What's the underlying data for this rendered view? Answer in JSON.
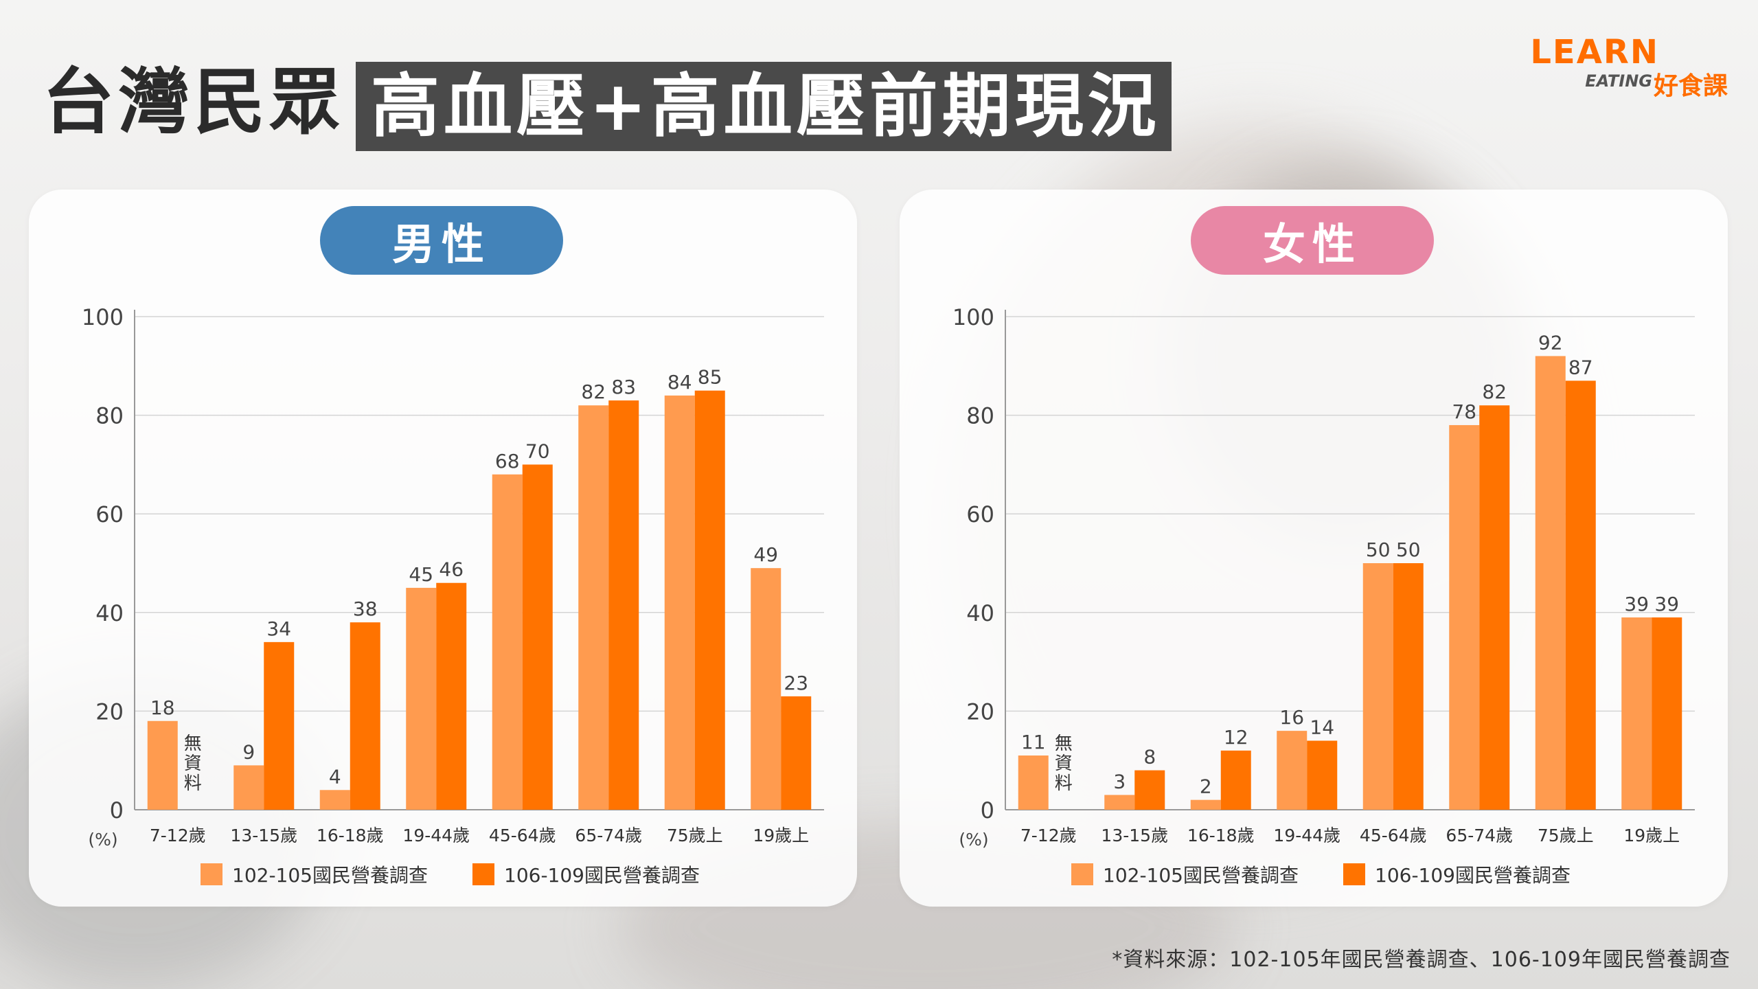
{
  "header": {
    "title_part1": "台灣民眾",
    "title_part2": "高血壓+高血壓前期現況"
  },
  "logo": {
    "learn": "LEARN",
    "eating": "EATING",
    "cn": "好食課"
  },
  "colors": {
    "series_a": "#ff9b4f",
    "series_b": "#ff7300",
    "male_pill": "#4383b9",
    "female_pill": "#e887a5"
  },
  "source_note": "*資料來源：102-105年國民營養調查、106-109年國民營養調查",
  "chart_data": [
    {
      "type": "bar",
      "title": "男性",
      "categories": [
        "7-12歲",
        "13-15歲",
        "16-18歲",
        "19-44歲",
        "45-64歲",
        "65-74歲",
        "75歲上",
        "19歲上"
      ],
      "ylim": [
        0,
        100
      ],
      "yticks": [
        0,
        20,
        40,
        60,
        80,
        100
      ],
      "unit_label": "(%)",
      "grid": true,
      "legend_position": "bottom",
      "no_data_label": "無資料",
      "series": [
        {
          "name": "102-105國民營養調查",
          "values": [
            18,
            9,
            4,
            45,
            68,
            82,
            84,
            49
          ]
        },
        {
          "name": "106-109國民營養調查",
          "values": [
            null,
            34,
            38,
            46,
            70,
            83,
            85,
            23
          ]
        }
      ]
    },
    {
      "type": "bar",
      "title": "女性",
      "categories": [
        "7-12歲",
        "13-15歲",
        "16-18歲",
        "19-44歲",
        "45-64歲",
        "65-74歲",
        "75歲上",
        "19歲上"
      ],
      "ylim": [
        0,
        100
      ],
      "yticks": [
        0,
        20,
        40,
        60,
        80,
        100
      ],
      "unit_label": "(%)",
      "grid": true,
      "legend_position": "bottom",
      "no_data_label": "無資料",
      "series": [
        {
          "name": "102-105國民營養調查",
          "values": [
            11,
            3,
            2,
            16,
            50,
            78,
            92,
            39
          ]
        },
        {
          "name": "106-109國民營養調查",
          "values": [
            null,
            8,
            12,
            14,
            50,
            82,
            87,
            39
          ]
        }
      ]
    }
  ]
}
